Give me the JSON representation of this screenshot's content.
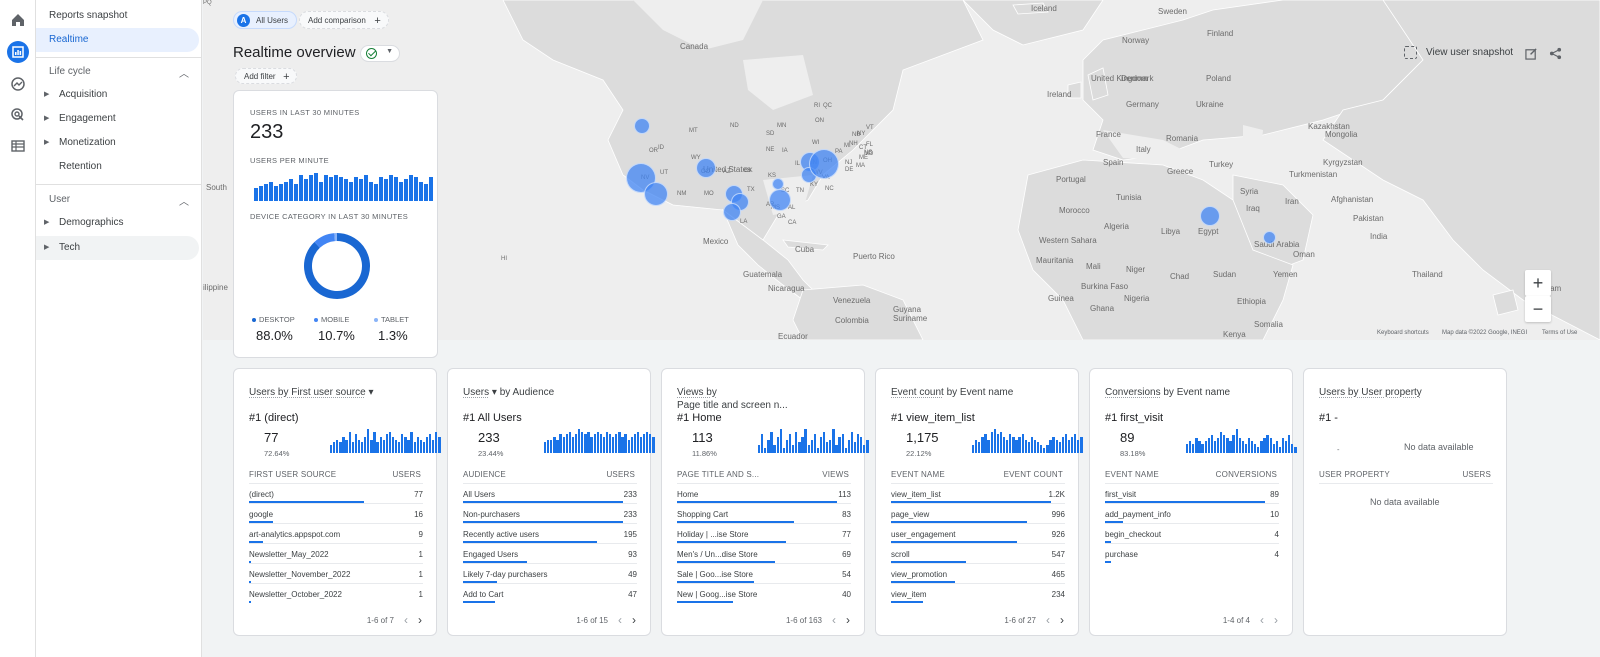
{
  "sidebar": {
    "reports_snapshot": "Reports snapshot",
    "realtime": "Realtime",
    "lifecycle": "Life cycle",
    "lifecycle_items": [
      "Acquisition",
      "Engagement",
      "Monetization",
      "Retention"
    ],
    "user": "User",
    "user_items": [
      "Demographics",
      "Tech"
    ]
  },
  "header": {
    "segment_letter": "A",
    "segment": "All Users",
    "add_comparison": "Add comparison",
    "title": "Realtime overview",
    "add_filter": "Add filter",
    "view_snapshot": "View user snapshot"
  },
  "map": {
    "labels": [
      "Iceland",
      "Sweden",
      "Finland",
      "Norway",
      "Canada",
      "United Kingdom",
      "Denmark",
      "Poland",
      "Ireland",
      "Germany",
      "Ukraine",
      "Kazakhstan",
      "France",
      "Romania",
      "Mongolia",
      "Italy",
      "Spain",
      "Kyrgyzstan",
      "Portugal",
      "Turkey",
      "Turkmenistan",
      "Greece",
      "Syria",
      "Tunisia",
      "Iraq",
      "Iran",
      "Afghanistan",
      "Morocco",
      "Pakistan",
      "Algeria",
      "Libya",
      "Egypt",
      "Western Sahara",
      "Saudi Arabia",
      "Oman",
      "India",
      "Mauritania",
      "Mali",
      "Niger",
      "Chad",
      "Sudan",
      "Yemen",
      "Burkina Faso",
      "Thailand",
      "Guinea",
      "Nigeria",
      "Ethiopia",
      "Ghana",
      "Vietnam",
      "Somalia",
      "Kenya",
      "United States",
      "Mexico",
      "Cuba",
      "Puerto Rico",
      "Guatemala",
      "Nicaragua",
      "Venezuela",
      "Guyana",
      "Suriname",
      "Colombia",
      "Ecuador",
      "South",
      "ilippine",
      "HI",
      "MT",
      "ND",
      "MN",
      "WI",
      "MI",
      "NY",
      "QC",
      "ON",
      "NB",
      "NS",
      "OR",
      "ID",
      "WY",
      "SD",
      "NE",
      "IA",
      "IL",
      "IN",
      "OH",
      "PA",
      "NJ",
      "VA",
      "KY",
      "WV",
      "NC",
      "TN",
      "SC",
      "AR",
      "MS",
      "AL",
      "GA",
      "LA",
      "TX",
      "OK",
      "KS",
      "MO",
      "NM",
      "AZ",
      "CO",
      "UT",
      "NV",
      "CA",
      "FL",
      "NH",
      "VT",
      "ME",
      "CT",
      "MA",
      "DE",
      "MD",
      "RI",
      "PQ"
    ],
    "keyboard": "Keyboard shortcuts",
    "map_data": "Map data ©2022 Google, INEGI",
    "terms": "Terms of Use",
    "zoom_in": "+",
    "zoom_out": "−"
  },
  "overview": {
    "users_label": "USERS IN LAST 30 MINUTES",
    "users_value": "233",
    "per_minute_label": "USERS PER MINUTE",
    "device_label": "DEVICE CATEGORY IN LAST 30 MINUTES",
    "per_minute_values": [
      6,
      7,
      8,
      9,
      7,
      8,
      9,
      10,
      8,
      12,
      10,
      12,
      13,
      9,
      12,
      11,
      12,
      11,
      10,
      9,
      11,
      10,
      12,
      9,
      8,
      11,
      10,
      12,
      11,
      9,
      10,
      12,
      11,
      9,
      8,
      11
    ],
    "devices": [
      {
        "name": "DESKTOP",
        "value": "88.0%",
        "share": 0.88,
        "color": "#1967d2"
      },
      {
        "name": "MOBILE",
        "value": "10.7%",
        "share": 0.107,
        "color": "#4285f4"
      },
      {
        "name": "TABLET",
        "value": "1.3%",
        "share": 0.013,
        "color": "#8ab4f8"
      }
    ]
  },
  "cards": [
    {
      "title_pre": "",
      "title_dim": "Users by First user source",
      "title_drop": "▾",
      "title_post": "",
      "rank": "#1  (direct)",
      "rank_value": "77",
      "rank_pct": "72.64%",
      "col1": "FIRST USER SOURCE",
      "col2": "USERS",
      "rows": [
        {
          "name": "(direct)",
          "value": "77",
          "share": 0.72
        },
        {
          "name": "google",
          "value": "16",
          "share": 0.15
        },
        {
          "name": "art-analytics.appspot.com",
          "value": "9",
          "share": 0.09
        },
        {
          "name": "Newsletter_May_2022",
          "value": "1",
          "share": 0.01
        },
        {
          "name": "Newsletter_November_2022",
          "value": "1",
          "share": 0.01
        },
        {
          "name": "Newsletter_October_2022",
          "value": "1",
          "share": 0.01
        }
      ],
      "pager": "1-6 of 7",
      "spark": [
        3,
        4,
        5,
        4,
        6,
        5,
        8,
        4,
        7,
        5,
        4,
        6,
        9,
        5,
        8,
        4,
        6,
        5,
        7,
        8,
        6,
        5,
        4,
        7,
        6,
        5,
        8,
        4,
        6,
        5,
        4,
        6,
        7,
        5,
        8,
        6
      ]
    },
    {
      "title_pre": "",
      "title_dim": "Users",
      "title_drop": "▾",
      "title_post": "by Audience",
      "rank": "#1  All Users",
      "rank_value": "233",
      "rank_pct": "23.44%",
      "col1": "AUDIENCE",
      "col2": "USERS",
      "rows": [
        {
          "name": "All Users",
          "value": "233",
          "share": 1.0
        },
        {
          "name": "Non-purchasers",
          "value": "233",
          "share": 1.0
        },
        {
          "name": "Recently active users",
          "value": "195",
          "share": 0.84
        },
        {
          "name": "Engaged Users",
          "value": "93",
          "share": 0.4
        },
        {
          "name": "Likely 7-day purchasers",
          "value": "49",
          "share": 0.21
        },
        {
          "name": "Add to Cart",
          "value": "47",
          "share": 0.2
        }
      ],
      "pager": "1-6 of 15",
      "spark": [
        4,
        5,
        5,
        6,
        5,
        7,
        6,
        7,
        8,
        6,
        7,
        9,
        8,
        7,
        8,
        6,
        7,
        8,
        7,
        6,
        8,
        7,
        6,
        7,
        8,
        6,
        7,
        5,
        6,
        7,
        8,
        6,
        7,
        8,
        7,
        6
      ]
    },
    {
      "title_pre": "",
      "title_dim": "Views by",
      "title_drop": "",
      "title_post": "Page title and screen n...",
      "rank": "#1  Home",
      "rank_value": "113",
      "rank_pct": "11.86%",
      "col1": "PAGE TITLE AND S...",
      "col2": "VIEWS",
      "rows": [
        {
          "name": "Home",
          "value": "113",
          "share": 1.0
        },
        {
          "name": "Shopping Cart",
          "value": "83",
          "share": 0.73
        },
        {
          "name": "Holiday | ...ise Store",
          "value": "77",
          "share": 0.68
        },
        {
          "name": "Men's / Un...dise Store",
          "value": "69",
          "share": 0.61
        },
        {
          "name": "Sale | Goo...ise Store",
          "value": "54",
          "share": 0.48
        },
        {
          "name": "New | Goog...ise Store",
          "value": "40",
          "share": 0.35
        }
      ],
      "pager": "1-6 of 163",
      "spark": [
        3,
        7,
        2,
        5,
        8,
        3,
        6,
        9,
        2,
        5,
        7,
        3,
        8,
        4,
        6,
        9,
        3,
        5,
        7,
        2,
        6,
        8,
        4,
        5,
        9,
        3,
        6,
        7,
        2,
        5,
        8,
        4,
        7,
        6,
        3,
        5
      ]
    },
    {
      "title_pre": "",
      "title_dim": "Event count",
      "title_drop": "",
      "title_post": "by Event name",
      "rank": "#1  view_item_list",
      "rank_value": "1,175",
      "rank_pct": "22.12%",
      "col1": "EVENT NAME",
      "col2": "EVENT COUNT",
      "rows": [
        {
          "name": "view_item_list",
          "value": "1.2K",
          "share": 1.0
        },
        {
          "name": "page_view",
          "value": "996",
          "share": 0.85
        },
        {
          "name": "user_engagement",
          "value": "926",
          "share": 0.79
        },
        {
          "name": "scroll",
          "value": "547",
          "share": 0.47
        },
        {
          "name": "view_promotion",
          "value": "465",
          "share": 0.4
        },
        {
          "name": "view_item",
          "value": "234",
          "share": 0.2
        }
      ],
      "pager": "1-6 of 27",
      "spark": [
        3,
        5,
        4,
        6,
        7,
        5,
        8,
        9,
        7,
        8,
        6,
        5,
        7,
        6,
        5,
        6,
        7,
        5,
        4,
        6,
        5,
        4,
        3,
        2,
        3,
        5,
        6,
        5,
        4,
        6,
        7,
        5,
        6,
        7,
        5,
        6
      ]
    },
    {
      "title_pre": "",
      "title_dim": "Conversions",
      "title_drop": "",
      "title_post": "by Event name",
      "rank": "#1  first_visit",
      "rank_value": "89",
      "rank_pct": "83.18%",
      "col1": "EVENT NAME",
      "col2": "CONVERSIONS",
      "rows": [
        {
          "name": "first_visit",
          "value": "89",
          "share": 1.0
        },
        {
          "name": "add_payment_info",
          "value": "10",
          "share": 0.11
        },
        {
          "name": "begin_checkout",
          "value": "4",
          "share": 0.04
        },
        {
          "name": "purchase",
          "value": "4",
          "share": 0.04
        }
      ],
      "pager": "1-4 of 4",
      "spark": [
        3,
        4,
        3,
        5,
        4,
        3,
        4,
        5,
        6,
        4,
        5,
        7,
        6,
        5,
        4,
        6,
        8,
        5,
        4,
        3,
        5,
        4,
        3,
        2,
        4,
        5,
        6,
        5,
        3,
        4,
        2,
        5,
        4,
        6,
        3,
        2
      ]
    },
    {
      "title_pre": "",
      "title_dim": "Users by User property",
      "title_drop": "",
      "title_post": "",
      "rank": "#1  -",
      "rank_value": "-",
      "rank_pct": "",
      "col1": "USER PROPERTY",
      "col2": "USERS",
      "rows": [],
      "nodata_top": "No data available",
      "nodata_table": "No data available",
      "pager": "",
      "spark": []
    }
  ]
}
